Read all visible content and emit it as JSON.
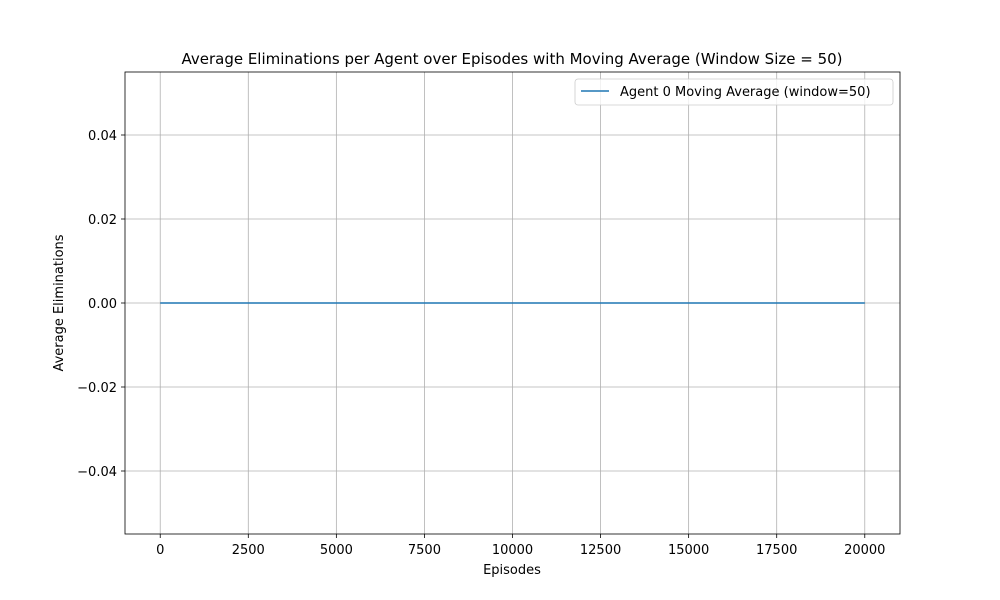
{
  "chart_data": {
    "type": "line",
    "title": "Average Eliminations per Agent over Episodes with Moving Average (Window Size = 50)",
    "xlabel": "Episodes",
    "ylabel": "Average Eliminations",
    "xlim": [
      -1000,
      21000
    ],
    "ylim": [
      -0.055,
      0.055
    ],
    "xticks": [
      0,
      2500,
      5000,
      7500,
      10000,
      12500,
      15000,
      17500,
      20000
    ],
    "xtick_labels": [
      "0",
      "2500",
      "5000",
      "7500",
      "10000",
      "12500",
      "15000",
      "17500",
      "20000"
    ],
    "yticks": [
      -0.04,
      -0.02,
      0.0,
      0.02,
      0.04
    ],
    "ytick_labels": [
      "−0.04",
      "−0.02",
      "0.00",
      "0.02",
      "0.04"
    ],
    "grid": true,
    "legend_position": "top-right",
    "series": [
      {
        "name": "Agent 0 Moving Average (window=50)",
        "color": "#1f77b4",
        "x": [
          0,
          20000
        ],
        "y": [
          0.0,
          0.0
        ]
      }
    ]
  }
}
